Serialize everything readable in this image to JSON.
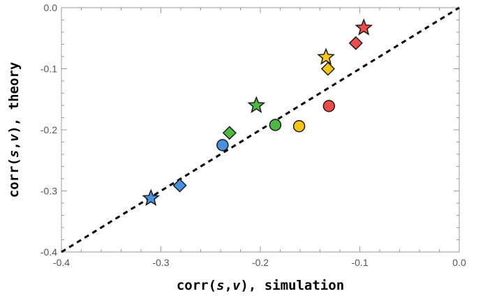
{
  "chart_data": {
    "type": "scatter",
    "xlabel_parts": [
      "corr(",
      "s",
      ",",
      "v",
      "), simulation"
    ],
    "ylabel_parts": [
      "corr(",
      "s",
      ",",
      "v",
      "), theory"
    ],
    "xlim": [
      -0.4,
      0.0
    ],
    "ylim": [
      -0.4,
      0.0
    ],
    "x_ticks": [
      "-0.4",
      "-0.3",
      "-0.2",
      "-0.1",
      "0.0"
    ],
    "y_ticks": [
      "-0.4",
      "-0.3",
      "-0.2",
      "-0.1",
      "0.0"
    ],
    "tick_values": [
      -0.4,
      -0.3,
      -0.2,
      -0.1,
      0.0
    ],
    "reference_line": {
      "style": "dashed",
      "from": [
        -0.4,
        -0.4
      ],
      "to": [
        0.0,
        0.0
      ],
      "color": "#000000"
    },
    "series": [
      {
        "color": "#4a90e2",
        "points": [
          {
            "x": -0.238,
            "y": -0.225,
            "marker": "circle"
          },
          {
            "x": -0.281,
            "y": -0.291,
            "marker": "diamond"
          },
          {
            "x": -0.31,
            "y": -0.312,
            "marker": "star"
          }
        ]
      },
      {
        "color": "#4cb843",
        "points": [
          {
            "x": -0.185,
            "y": -0.192,
            "marker": "circle"
          },
          {
            "x": -0.231,
            "y": -0.205,
            "marker": "diamond"
          },
          {
            "x": -0.204,
            "y": -0.16,
            "marker": "star"
          }
        ]
      },
      {
        "color": "#f5c518",
        "points": [
          {
            "x": -0.161,
            "y": -0.194,
            "marker": "circle"
          },
          {
            "x": -0.132,
            "y": -0.1,
            "marker": "diamond"
          },
          {
            "x": -0.134,
            "y": -0.081,
            "marker": "star"
          }
        ]
      },
      {
        "color": "#ef4b4b",
        "points": [
          {
            "x": -0.131,
            "y": -0.161,
            "marker": "circle"
          },
          {
            "x": -0.104,
            "y": -0.058,
            "marker": "diamond"
          },
          {
            "x": -0.096,
            "y": -0.033,
            "marker": "star"
          }
        ]
      }
    ]
  }
}
